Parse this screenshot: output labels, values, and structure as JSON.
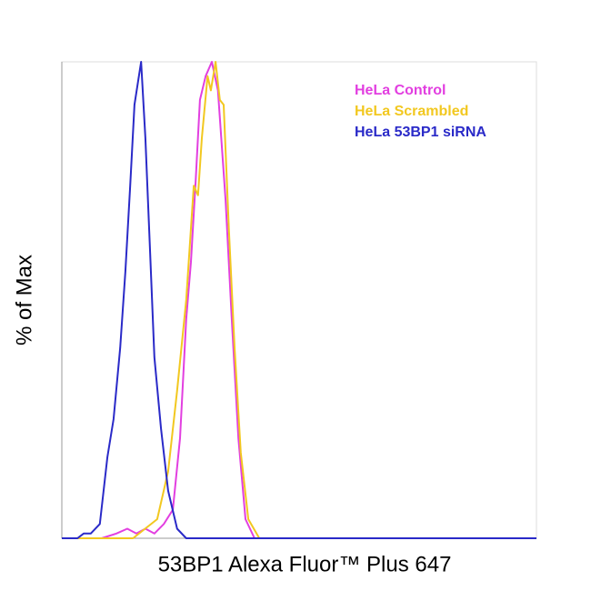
{
  "chart_data": {
    "type": "line",
    "x_label": "53BP1 Alexa Fluor™ Plus 647",
    "y_label": "% of Max",
    "xlim": [
      0,
      100
    ],
    "ylim": [
      0,
      100
    ],
    "series": [
      {
        "name": "HeLa Control",
        "color": "#e23fe0",
        "x": [
          0,
          8.4,
          11.5,
          13.8,
          15.7,
          17.6,
          19.5,
          21.5,
          23.4,
          24.9,
          26.2,
          27.2,
          28.2,
          29.1,
          30.3,
          31.6,
          32.9,
          34.5,
          35.8,
          37.2,
          38.7,
          40.6,
          100
        ],
        "values": [
          0,
          0,
          1,
          2,
          1,
          2,
          1,
          3,
          6,
          21,
          46,
          58,
          75,
          92,
          97,
          100,
          94,
          71,
          46,
          21,
          4,
          0,
          0
        ]
      },
      {
        "name": "HeLa Scrambled",
        "color": "#f2c820",
        "x": [
          0,
          15,
          20.1,
          22.4,
          24.3,
          26.2,
          27.8,
          28.7,
          29.5,
          30.7,
          31.4,
          32.4,
          33.3,
          34.1,
          35.2,
          36.4,
          37.7,
          39.3,
          41.6,
          100
        ],
        "values": [
          0,
          0,
          4,
          14,
          31,
          50,
          74,
          72,
          84,
          97,
          94,
          100,
          92,
          91,
          65,
          40,
          18,
          4,
          0,
          0
        ]
      },
      {
        "name": "HeLa 53BP1 siRNA",
        "color": "#2a2ac8",
        "x": [
          0,
          3.3,
          4.6,
          6.1,
          8.0,
          9.6,
          10.9,
          12.3,
          13.4,
          14.4,
          15.3,
          16.7,
          17.6,
          18.6,
          19.5,
          20.9,
          22.4,
          24.3,
          26.2,
          34.9,
          100
        ],
        "values": [
          0,
          0,
          1,
          1,
          3,
          17,
          25,
          40,
          56,
          74,
          91,
          100,
          84,
          60,
          38,
          23,
          10,
          2,
          0,
          0,
          0
        ]
      }
    ]
  }
}
